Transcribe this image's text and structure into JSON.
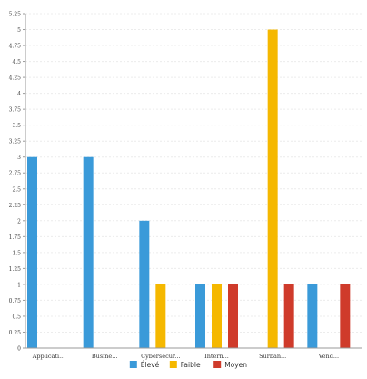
{
  "chart_data": {
    "type": "bar",
    "categories": [
      "Applicati...",
      "Busine...",
      "Cybersecur...",
      "Intern...",
      "Surban...",
      "Vend..."
    ],
    "series": [
      {
        "name": "Élevé",
        "color": "#3a9ad9",
        "values": [
          3,
          3,
          2,
          1,
          0,
          1
        ]
      },
      {
        "name": "Faible",
        "color": "#f5b800",
        "values": [
          0,
          0,
          1,
          1,
          5,
          0
        ]
      },
      {
        "name": "Moyen",
        "color": "#cf3b2b",
        "values": [
          0,
          0,
          0,
          1,
          1,
          1
        ]
      }
    ],
    "yticks": [
      "0",
      "0.25",
      "0.5",
      "0.75",
      "1",
      "1.25",
      "1.5",
      "1.75",
      "2",
      "2.25",
      "2.5",
      "2.75",
      "3",
      "3.25",
      "3.5",
      "3.75",
      "4",
      "4.25",
      "4.5",
      "4.75",
      "5",
      "5.25"
    ],
    "ylim": [
      0,
      5.25
    ],
    "grid": true,
    "legend_position": "bottom-center"
  }
}
